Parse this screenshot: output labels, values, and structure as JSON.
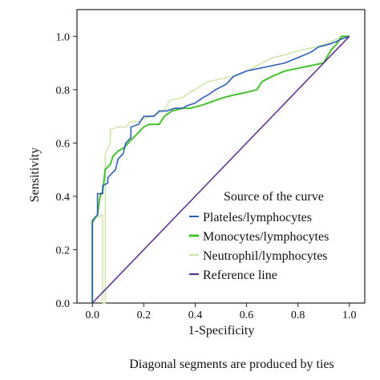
{
  "chart_data": {
    "type": "line",
    "title": "",
    "xlabel": "1-Specificity",
    "ylabel": "Sensitivity",
    "footnote": "Diagonal segments are produced by ties",
    "xlim": [
      -0.06,
      1.06
    ],
    "ylim": [
      0,
      1.1
    ],
    "x_ticks": [
      "0.0",
      "0.2",
      "0.4",
      "0.6",
      "0.8",
      "1.0"
    ],
    "y_ticks": [
      "0.0",
      "0.2",
      "0.4",
      "0.6",
      "0.8",
      "1.0"
    ],
    "grid": false,
    "legend_title": "Source of the curve",
    "legend_position": "bottom-right",
    "series": [
      {
        "name": "Plateles/lymphocytes",
        "color": "#2f5fb8",
        "points": [
          [
            0,
            0
          ],
          [
            0,
            0.31
          ],
          [
            0.01,
            0.32
          ],
          [
            0.02,
            0.33
          ],
          [
            0.02,
            0.41
          ],
          [
            0.04,
            0.41
          ],
          [
            0.04,
            0.44
          ],
          [
            0.06,
            0.45
          ],
          [
            0.06,
            0.47
          ],
          [
            0.09,
            0.5
          ],
          [
            0.1,
            0.54
          ],
          [
            0.12,
            0.56
          ],
          [
            0.13,
            0.6
          ],
          [
            0.15,
            0.62
          ],
          [
            0.15,
            0.66
          ],
          [
            0.18,
            0.67
          ],
          [
            0.2,
            0.7
          ],
          [
            0.24,
            0.7
          ],
          [
            0.26,
            0.72
          ],
          [
            0.29,
            0.72
          ],
          [
            0.32,
            0.73
          ],
          [
            0.35,
            0.73
          ],
          [
            0.37,
            0.74
          ],
          [
            0.4,
            0.75
          ],
          [
            0.43,
            0.77
          ],
          [
            0.45,
            0.78
          ],
          [
            0.48,
            0.8
          ],
          [
            0.52,
            0.82
          ],
          [
            0.55,
            0.85
          ],
          [
            0.6,
            0.87
          ],
          [
            0.65,
            0.88
          ],
          [
            0.7,
            0.89
          ],
          [
            0.75,
            0.9
          ],
          [
            0.8,
            0.92
          ],
          [
            0.85,
            0.94
          ],
          [
            0.88,
            0.96
          ],
          [
            0.92,
            0.97
          ],
          [
            0.95,
            0.98
          ],
          [
            0.97,
            0.99
          ],
          [
            1,
            1
          ]
        ]
      },
      {
        "name": "Monocytes/lymphocytes",
        "color": "#44c22e",
        "points": [
          [
            0,
            0
          ],
          [
            0,
            0.3
          ],
          [
            0.01,
            0.32
          ],
          [
            0.02,
            0.33
          ],
          [
            0.03,
            0.4
          ],
          [
            0.04,
            0.42
          ],
          [
            0.05,
            0.5
          ],
          [
            0.07,
            0.52
          ],
          [
            0.08,
            0.55
          ],
          [
            0.1,
            0.57
          ],
          [
            0.12,
            0.58
          ],
          [
            0.14,
            0.6
          ],
          [
            0.16,
            0.62
          ],
          [
            0.18,
            0.64
          ],
          [
            0.2,
            0.66
          ],
          [
            0.22,
            0.67
          ],
          [
            0.26,
            0.67
          ],
          [
            0.28,
            0.7
          ],
          [
            0.31,
            0.72
          ],
          [
            0.35,
            0.73
          ],
          [
            0.38,
            0.73
          ],
          [
            0.42,
            0.74
          ],
          [
            0.45,
            0.75
          ],
          [
            0.48,
            0.76
          ],
          [
            0.51,
            0.77
          ],
          [
            0.55,
            0.78
          ],
          [
            0.6,
            0.79
          ],
          [
            0.64,
            0.8
          ],
          [
            0.66,
            0.83
          ],
          [
            0.7,
            0.85
          ],
          [
            0.75,
            0.87
          ],
          [
            0.8,
            0.88
          ],
          [
            0.85,
            0.89
          ],
          [
            0.9,
            0.9
          ],
          [
            0.93,
            0.95
          ],
          [
            0.95,
            0.97
          ],
          [
            0.97,
            1.0
          ],
          [
            1,
            1
          ]
        ]
      },
      {
        "name": "Neutrophil/lymphocytes",
        "color": "#c9e3a2",
        "points": [
          [
            0,
            0
          ],
          [
            0,
            0.31
          ],
          [
            0.02,
            0.32
          ],
          [
            0.04,
            0.33
          ],
          [
            0.04,
            0.0
          ],
          [
            0.05,
            0.0
          ],
          [
            0.05,
            0.56
          ],
          [
            0.06,
            0.58
          ],
          [
            0.07,
            0.6
          ],
          [
            0.07,
            0.65
          ],
          [
            0.1,
            0.66
          ],
          [
            0.13,
            0.66
          ],
          [
            0.15,
            0.68
          ],
          [
            0.18,
            0.68
          ],
          [
            0.2,
            0.69
          ],
          [
            0.25,
            0.71
          ],
          [
            0.28,
            0.72
          ],
          [
            0.3,
            0.76
          ],
          [
            0.35,
            0.77
          ],
          [
            0.38,
            0.79
          ],
          [
            0.4,
            0.8
          ],
          [
            0.45,
            0.83
          ],
          [
            0.5,
            0.84
          ],
          [
            0.55,
            0.85
          ],
          [
            0.58,
            0.86
          ],
          [
            0.62,
            0.88
          ],
          [
            0.66,
            0.9
          ],
          [
            0.7,
            0.92
          ],
          [
            0.75,
            0.93
          ],
          [
            0.78,
            0.94
          ],
          [
            0.82,
            0.95
          ],
          [
            0.87,
            0.96
          ],
          [
            0.9,
            0.97
          ],
          [
            0.93,
            0.98
          ],
          [
            0.95,
            0.99
          ],
          [
            0.98,
            1.0
          ],
          [
            1,
            1
          ]
        ]
      },
      {
        "name": "Reference line",
        "color": "#5b2c8c",
        "points": [
          [
            0,
            0
          ],
          [
            1,
            1
          ]
        ]
      }
    ]
  }
}
